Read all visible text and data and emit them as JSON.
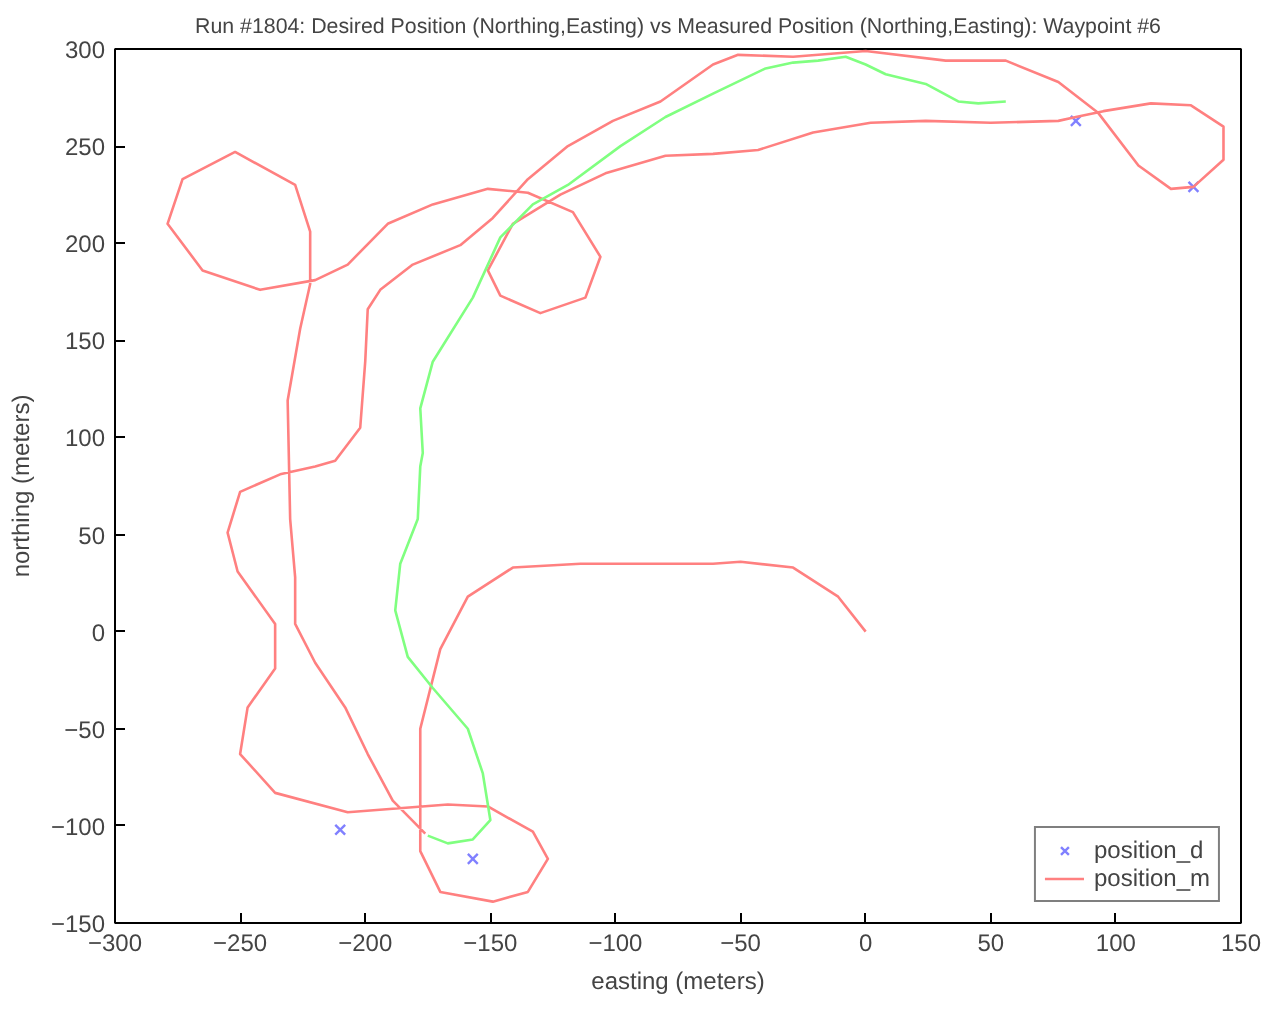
{
  "chart_data": {
    "type": "line",
    "title": "Run #1804: Desired Position (Northing,Easting) vs Measured Position (Northing,Easting): Waypoint #6",
    "xlabel": "easting (meters)",
    "ylabel": "northing (meters)",
    "xlim": [
      -300,
      150
    ],
    "ylim": [
      -150,
      300
    ],
    "xticks": [
      -300,
      -250,
      -200,
      -150,
      -100,
      -50,
      0,
      50,
      100,
      150
    ],
    "yticks": [
      -150,
      -100,
      -50,
      0,
      50,
      100,
      150,
      200,
      250,
      300
    ],
    "grid": false,
    "legend": "bottom right",
    "series": [
      {
        "name": "position_d",
        "type": "scatter",
        "marker": "cross",
        "color": "#8080ff",
        "x": [
          -210,
          -157,
          84,
          131
        ],
        "values": [
          -102,
          -117,
          263,
          229
        ]
      },
      {
        "name": "position_m",
        "type": "line",
        "color": "#ff8080",
        "x": [
          0,
          -11,
          -29,
          -50,
          -61,
          -114,
          -141,
          -159,
          -170,
          -178,
          -178,
          -170,
          -149,
          -135,
          -127,
          -133,
          -151,
          -167,
          -207,
          -236,
          -250,
          -247,
          -236,
          -236,
          -251,
          -255,
          -250,
          -234,
          -220,
          -212,
          -202,
          -200,
          -199,
          -194,
          -181,
          -162,
          -149,
          -135,
          -119,
          -101,
          -82,
          -61,
          -51,
          -29,
          0,
          32,
          56,
          77,
          93,
          109,
          122,
          131,
          143,
          143,
          130,
          114,
          95,
          84,
          77,
          50,
          24,
          2,
          -21,
          -43,
          -61,
          -80,
          -104,
          -122,
          -141,
          -151,
          -146,
          -130,
          -112,
          -106,
          -117,
          -135,
          -151,
          -173,
          -191,
          -207,
          -220,
          -242,
          -265,
          -279,
          -273,
          -252,
          -228,
          -222,
          -222,
          -226,
          -231,
          -230,
          -228,
          -228,
          -220,
          -208,
          -199,
          -189,
          -176
        ],
        "values": [
          0,
          18,
          33,
          36,
          35,
          35,
          33,
          18,
          -9,
          -50,
          -113,
          -134,
          -139,
          -134,
          -117,
          -103,
          -90,
          -89,
          -93,
          -83,
          -63,
          -39,
          -19,
          4,
          31,
          51,
          72,
          81,
          85,
          88,
          105,
          139,
          166,
          176,
          189,
          199,
          213,
          233,
          250,
          263,
          273,
          292,
          297,
          296,
          299,
          294,
          294,
          283,
          267,
          240,
          228,
          229,
          243,
          260,
          271,
          272,
          268,
          265,
          263,
          262,
          263,
          262,
          257,
          248,
          246,
          245,
          236,
          225,
          210,
          186,
          173,
          164,
          172,
          193,
          216,
          226,
          228,
          220,
          210,
          189,
          181,
          176,
          186,
          210,
          233,
          247,
          230,
          206,
          179,
          156,
          119,
          58,
          28,
          4,
          -16,
          -39,
          -63,
          -87,
          -104
        ]
      },
      {
        "color": "#80ff80",
        "x": [
          -175,
          -167,
          -157,
          -150,
          -153,
          -159,
          -173,
          -183,
          -188,
          -186,
          -179,
          -178,
          -177,
          -178,
          -173,
          -157,
          -146,
          -133,
          -119,
          -98,
          -80,
          -61,
          -40,
          -29,
          -19,
          -8,
          0,
          8,
          24,
          37,
          45,
          56
        ],
        "values": [
          -105,
          -109,
          -107,
          -97,
          -73,
          -50,
          -29,
          -13,
          11,
          35,
          58,
          85,
          92,
          115,
          139,
          172,
          203,
          220,
          230,
          250,
          265,
          277,
          290,
          293,
          294,
          296,
          292,
          287,
          282,
          273,
          272,
          273
        ]
      }
    ]
  }
}
